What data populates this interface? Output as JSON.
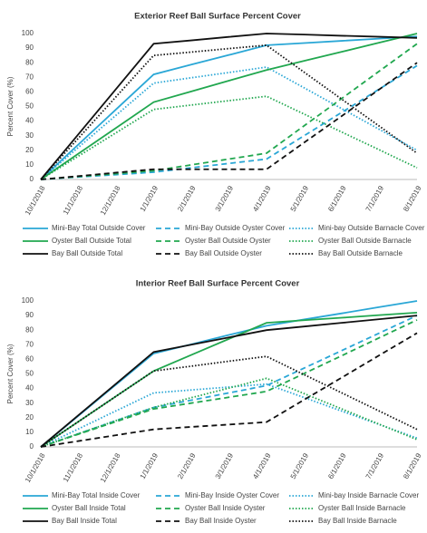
{
  "chart_data": [
    {
      "type": "line",
      "title": "Exterior Reef Ball Surface Percent Cover",
      "y_label": "Percent Cover (%)",
      "categories": [
        "10/1/2018",
        "11/1/2018",
        "12/1/2018",
        "1/1/2019",
        "2/1/2019",
        "3/1/2019",
        "4/1/2019",
        "5/1/2019",
        "6/1/2019",
        "7/1/2019",
        "8/1/2019"
      ],
      "ylim": [
        0,
        100
      ],
      "yticks": [
        0,
        10,
        20,
        30,
        40,
        50,
        60,
        70,
        80,
        90,
        100
      ],
      "grid": false,
      "legend": "bottom",
      "series": [
        {
          "name": "Mini-Bay Total Outside Cover",
          "color": "#2aa7d6",
          "style": "solid",
          "values": [
            0,
            24,
            48,
            72,
            78.7,
            85.3,
            92,
            93.5,
            95,
            96.5,
            98
          ]
        },
        {
          "name": "Mini-Bay Outside Oyster Cover",
          "color": "#2aa7d6",
          "style": "dashed",
          "values": [
            0,
            1.7,
            3.3,
            5,
            8,
            11,
            14,
            30,
            46,
            62,
            78
          ]
        },
        {
          "name": "Mini-bay Outside Barnacle Cover",
          "color": "#2aa7d6",
          "style": "dotted",
          "values": [
            0,
            22,
            44,
            66,
            69.7,
            73.3,
            77,
            62.8,
            48.5,
            34.3,
            20
          ]
        },
        {
          "name": "Oyster Ball Outside Total",
          "color": "#21a74f",
          "style": "solid",
          "values": [
            0,
            17.7,
            35.3,
            53,
            60.3,
            67.7,
            75,
            81.3,
            87.5,
            93.8,
            100
          ]
        },
        {
          "name": "Oyster Ball Outside Oyster",
          "color": "#21a74f",
          "style": "dashed",
          "values": [
            0,
            2,
            4,
            6,
            10,
            14,
            18,
            36.8,
            55.5,
            74.3,
            93
          ]
        },
        {
          "name": "Oyster Ball Outside Barnacle",
          "color": "#21a74f",
          "style": "dotted",
          "values": [
            0,
            16,
            32,
            48,
            51,
            54,
            57,
            44.8,
            32.5,
            20.3,
            8
          ]
        },
        {
          "name": "Bay Ball Outside Total",
          "color": "#111111",
          "style": "solid",
          "values": [
            0,
            31,
            62,
            93,
            95.3,
            97.7,
            100,
            99.3,
            98.5,
            97.8,
            97
          ]
        },
        {
          "name": "Bay Ball Outside Oyster",
          "color": "#111111",
          "style": "dashed",
          "values": [
            0,
            2.3,
            4.7,
            7,
            7,
            7,
            7,
            25.3,
            43.5,
            61.8,
            80
          ]
        },
        {
          "name": "Bay Ball Outside Barnacle",
          "color": "#111111",
          "style": "dotted",
          "values": [
            0,
            28.3,
            56.7,
            85,
            87.3,
            89.7,
            92,
            73.5,
            55,
            36.5,
            18
          ]
        }
      ]
    },
    {
      "type": "line",
      "title": "Interior Reef Ball Surface Percent Cover",
      "y_label": "Percent Cover (%)",
      "categories": [
        "10/1/2018",
        "11/1/2018",
        "12/1/2018",
        "1/1/2019",
        "2/1/2019",
        "3/1/2019",
        "4/1/2019",
        "5/1/2019",
        "6/1/2019",
        "7/1/2019",
        "8/1/2019"
      ],
      "ylim": [
        0,
        100
      ],
      "yticks": [
        0,
        10,
        20,
        30,
        40,
        50,
        60,
        70,
        80,
        90,
        100
      ],
      "grid": false,
      "legend": "bottom",
      "series": [
        {
          "name": "Mini-Bay Total Inside Cover",
          "color": "#2aa7d6",
          "style": "solid",
          "values": [
            0,
            21.3,
            42.7,
            64,
            70.3,
            76.7,
            83,
            87.3,
            91.5,
            95.8,
            100
          ]
        },
        {
          "name": "Mini-Bay Inside Oyster Cover",
          "color": "#2aa7d6",
          "style": "dashed",
          "values": [
            0,
            9,
            18,
            27,
            32,
            37,
            42,
            54,
            66,
            78,
            90
          ]
        },
        {
          "name": "Mini-bay Inside Barnacle Cover",
          "color": "#2aa7d6",
          "style": "dotted",
          "values": [
            0,
            12.3,
            24.7,
            37,
            39,
            41,
            43,
            33.8,
            24.5,
            15.3,
            6
          ]
        },
        {
          "name": "Oyster Ball Inside Total",
          "color": "#21a74f",
          "style": "solid",
          "values": [
            0,
            17.3,
            34.7,
            52,
            63,
            74,
            85,
            86.8,
            88.5,
            90.3,
            92
          ]
        },
        {
          "name": "Oyster Ball Inside Oyster",
          "color": "#21a74f",
          "style": "dashed",
          "values": [
            0,
            8.7,
            17.3,
            26,
            30,
            34,
            38,
            50.3,
            62.5,
            74.8,
            87
          ]
        },
        {
          "name": "Oyster Ball Inside Barnacle",
          "color": "#21a74f",
          "style": "dotted",
          "values": [
            0,
            9,
            18,
            27,
            33.7,
            40.3,
            47,
            36.5,
            26,
            15.5,
            5
          ]
        },
        {
          "name": "Bay Ball Inside Total",
          "color": "#111111",
          "style": "solid",
          "values": [
            0,
            21.7,
            43.3,
            65,
            70,
            75,
            80,
            82.5,
            85,
            87.5,
            90
          ]
        },
        {
          "name": "Bay Ball Inside Oyster",
          "color": "#111111",
          "style": "dashed",
          "values": [
            0,
            4,
            8,
            12,
            13.7,
            15.3,
            17,
            32.3,
            47.5,
            62.8,
            78
          ]
        },
        {
          "name": "Bay Ball Inside Barnacle",
          "color": "#111111",
          "style": "dotted",
          "values": [
            0,
            17.3,
            34.7,
            52,
            55.3,
            58.7,
            62,
            49.5,
            37,
            24.5,
            12
          ]
        }
      ]
    }
  ]
}
